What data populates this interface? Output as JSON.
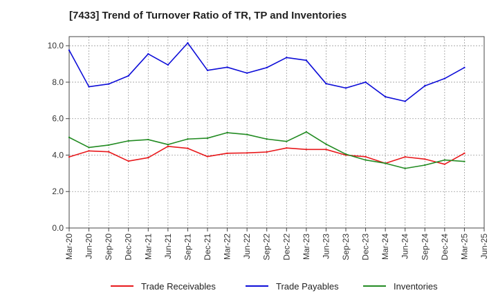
{
  "chart_data": {
    "type": "line",
    "title": "[7433]  Trend of Turnover Ratio of TR, TP and Inventories",
    "xlabel": "",
    "ylabel": "",
    "ylim": [
      0,
      10.5
    ],
    "yticks": [
      "0.0",
      "2.0",
      "4.0",
      "6.0",
      "8.0",
      "10.0"
    ],
    "x_tick_labels": [
      "Mar-20",
      "Jun-20",
      "Sep-20",
      "Dec-20",
      "Mar-21",
      "Jun-21",
      "Sep-21",
      "Dec-21",
      "Mar-22",
      "Jun-22",
      "Sep-22",
      "Dec-22",
      "Mar-23",
      "Jun-23",
      "Sep-23",
      "Dec-23",
      "Mar-24",
      "Jun-24",
      "Sep-24",
      "Dec-24",
      "Mar-25",
      "Jun-25"
    ],
    "categories": [
      "Mar-20",
      "Jun-20",
      "Sep-20",
      "Dec-20",
      "Mar-21",
      "Jun-21",
      "Sep-21",
      "Dec-21",
      "Mar-22",
      "Jun-22",
      "Sep-22",
      "Dec-22",
      "Mar-23",
      "Jun-23",
      "Sep-23",
      "Dec-23",
      "Mar-24",
      "Jun-24",
      "Sep-24",
      "Dec-24",
      "Mar-25"
    ],
    "grid": true,
    "legend_position": "bottom",
    "series": [
      {
        "name": "Trade Receivables",
        "color": "#e8181b",
        "values": [
          3.9,
          4.23,
          4.18,
          3.67,
          3.86,
          4.48,
          4.37,
          3.92,
          4.1,
          4.12,
          4.17,
          4.39,
          4.31,
          4.31,
          4.0,
          3.91,
          3.55,
          3.9,
          3.78,
          3.5,
          4.1
        ]
      },
      {
        "name": "Trade Payables",
        "color": "#0d0dd8",
        "values": [
          9.75,
          7.75,
          7.9,
          8.35,
          9.55,
          8.95,
          10.15,
          8.65,
          8.82,
          8.5,
          8.8,
          9.35,
          9.2,
          7.92,
          7.68,
          8.0,
          7.2,
          6.95,
          7.8,
          8.2,
          8.8
        ]
      },
      {
        "name": "Inventories",
        "color": "#228b22",
        "values": [
          4.97,
          4.42,
          4.55,
          4.78,
          4.85,
          4.58,
          4.88,
          4.93,
          5.23,
          5.13,
          4.88,
          4.75,
          5.27,
          4.6,
          4.05,
          3.73,
          3.55,
          3.27,
          3.45,
          3.73,
          3.65
        ]
      }
    ]
  }
}
